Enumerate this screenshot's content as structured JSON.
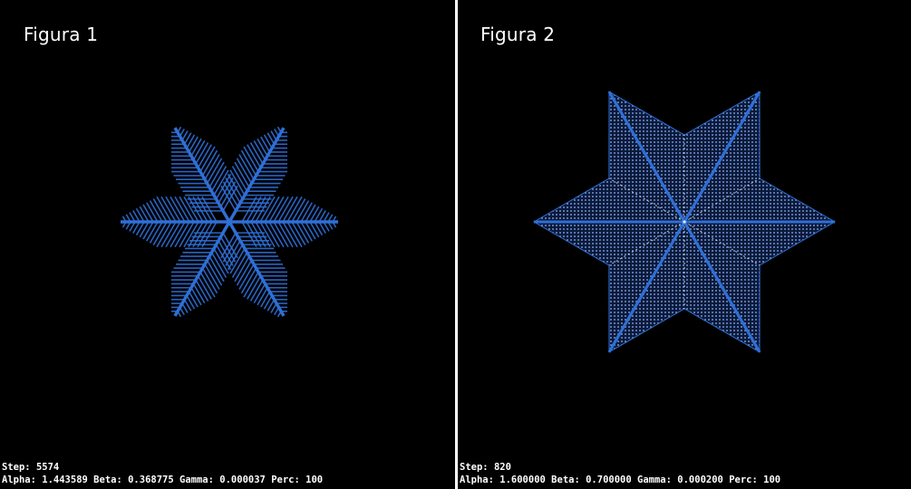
{
  "figures": [
    {
      "title": "Figura 1",
      "step_label": "Step:",
      "step": "5574",
      "alpha_label": "Alpha:",
      "alpha": "1.443589",
      "beta_label": "Beta:",
      "beta": "0.368775",
      "gamma_label": "Gamma:",
      "gamma": "0.000037",
      "perc_label": "Perc:",
      "perc": "100",
      "shape": "dendrite-snowflake"
    },
    {
      "title": "Figura 2",
      "step_label": "Step:",
      "step": "820",
      "alpha_label": "Alpha:",
      "alpha": "1.600000",
      "beta_label": "Beta:",
      "beta": "0.700000",
      "gamma_label": "Gamma:",
      "gamma": "0.000200",
      "perc_label": "Perc:",
      "perc": "100",
      "shape": "star-plate-snowflake"
    }
  ],
  "colors": {
    "background": "#000000",
    "crystal": "#2f6fd6",
    "crystal_light": "#8ab4ff",
    "text": "#ffffff"
  }
}
